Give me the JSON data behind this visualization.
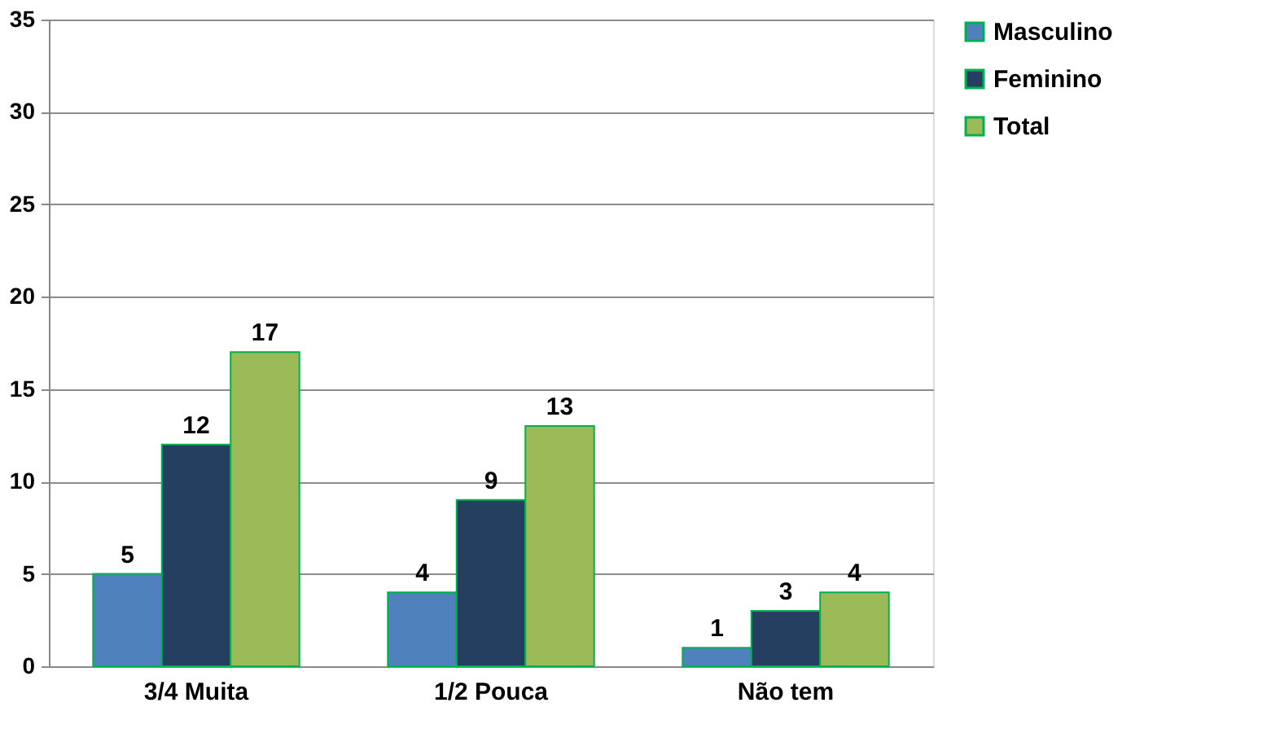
{
  "chart_data": {
    "type": "bar",
    "categories": [
      "3/4 Muita",
      "1/2 Pouca",
      "Não tem"
    ],
    "series": [
      {
        "name": "Masculino",
        "color": "#4f81bd",
        "values": [
          5,
          4,
          1
        ]
      },
      {
        "name": "Feminino",
        "color": "#243f60",
        "values": [
          12,
          9,
          3
        ]
      },
      {
        "name": "Total",
        "color": "#9bbb59",
        "values": [
          17,
          13,
          4
        ]
      }
    ],
    "ylim": [
      0,
      35
    ],
    "yticks": [
      0,
      5,
      10,
      15,
      20,
      25,
      30,
      35
    ],
    "grid": "y",
    "legend": "right",
    "data_labels": true
  }
}
